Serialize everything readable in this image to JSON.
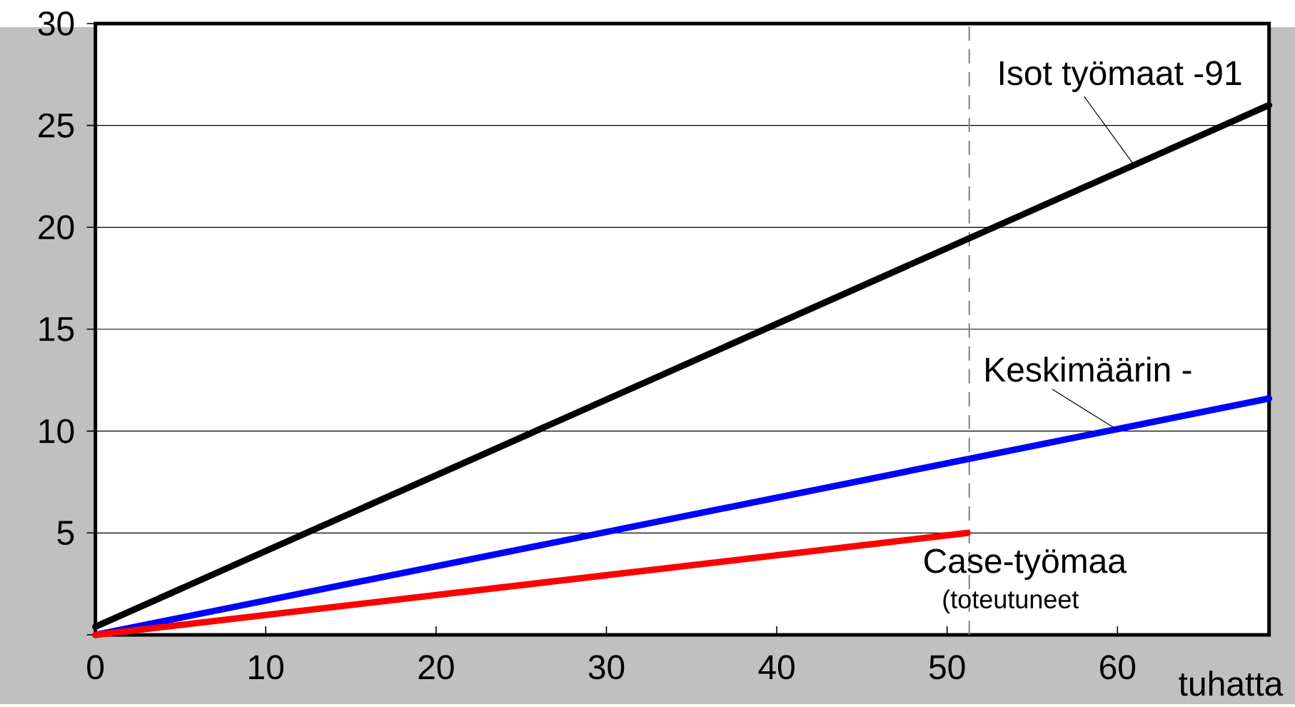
{
  "chart_data": {
    "type": "line",
    "xlabel": "tuhatta",
    "series": [
      {
        "name": "Isot työmaat -91",
        "color": "#000000",
        "x": [
          0,
          68.9
        ],
        "values": [
          0.4,
          26.0
        ]
      },
      {
        "name": "Keskimäärin -",
        "color": "#0000ff",
        "x": [
          0,
          68.9
        ],
        "values": [
          0,
          11.6
        ]
      },
      {
        "name": "Case-työmaa",
        "color": "#ff0000",
        "x": [
          0,
          51.2
        ],
        "values": [
          0,
          5.0
        ]
      }
    ],
    "annotations": [
      {
        "text": "(toteutuneet",
        "x": 51.2,
        "y": 5.0
      }
    ],
    "ref_lines": [
      {
        "axis": "x",
        "value": 51.3,
        "color": "#808080",
        "line_style": "dashed"
      }
    ],
    "xlim": [
      0,
      68.9
    ],
    "ylim": [
      0,
      30
    ],
    "xticks": [
      0,
      10,
      20,
      30,
      40,
      50,
      60
    ],
    "yticks": [
      {
        "value": 0,
        "label": null
      },
      5,
      10,
      15,
      20,
      25,
      30
    ],
    "grid": "y",
    "marker": "none",
    "line_style": "solid"
  }
}
